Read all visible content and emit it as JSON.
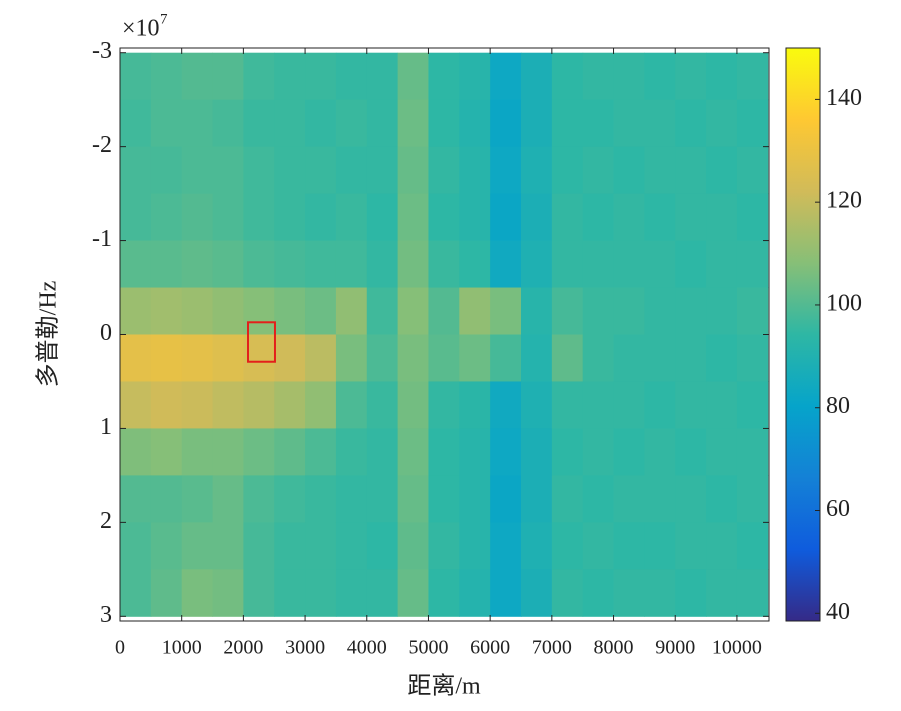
{
  "chart_data": {
    "type": "heatmap",
    "x_label": "距离/m",
    "y_label": "多普勒/Hz",
    "y_multiplier": {
      "base": "×10",
      "exponent": 7
    },
    "xlim": [
      0,
      10520
    ],
    "ylim": [
      -3.05,
      3.05
    ],
    "y_reversed": true,
    "xticks": [
      0,
      1000,
      2000,
      3000,
      4000,
      5000,
      6000,
      7000,
      8000,
      9000,
      10000
    ],
    "yticks": [
      -3,
      -2,
      -1,
      0,
      1,
      2,
      3
    ],
    "clim": [
      38.5,
      150
    ],
    "cticks": [
      40,
      60,
      80,
      100,
      120,
      140
    ],
    "colormap": [
      "#352a87",
      "#0f5cdd",
      "#1481d6",
      "#06a4ca",
      "#2eb7a4",
      "#87bf77",
      "#d1bb59",
      "#fec832",
      "#f9fb0e"
    ],
    "cell_width": 500,
    "cell_height": 0.5,
    "x": [
      250,
      750,
      1250,
      1750,
      2250,
      2750,
      3250,
      3750,
      4250,
      4750,
      5250,
      5750,
      6250,
      6750,
      7250,
      7750,
      8250,
      8750,
      9250,
      9750,
      10250
    ],
    "y": [
      -2.75,
      -2.25,
      -1.75,
      -1.25,
      -0.75,
      -0.25,
      0.25,
      0.75,
      1.25,
      1.75,
      2.25,
      2.75
    ],
    "z": [
      [
        98,
        99,
        100,
        100,
        97,
        96,
        96,
        95,
        95,
        103,
        94,
        92,
        83,
        88,
        94,
        95,
        95,
        94,
        95,
        94,
        95
      ],
      [
        97,
        99,
        99,
        98,
        96,
        96,
        95,
        96,
        95,
        104,
        94,
        91,
        82,
        88,
        94,
        94,
        95,
        95,
        94,
        95,
        94
      ],
      [
        98,
        98,
        99,
        99,
        97,
        96,
        96,
        95,
        95,
        103,
        95,
        92,
        83,
        89,
        94,
        95,
        94,
        95,
        95,
        94,
        95
      ],
      [
        98,
        99,
        100,
        99,
        97,
        96,
        95,
        96,
        94,
        104,
        94,
        92,
        82,
        88,
        95,
        94,
        95,
        94,
        95,
        95,
        94
      ],
      [
        101,
        101,
        102,
        101,
        99,
        98,
        97,
        97,
        95,
        105,
        96,
        94,
        84,
        89,
        95,
        95,
        95,
        95,
        94,
        95,
        95
      ],
      [
        112,
        113,
        112,
        110,
        108,
        106,
        104,
        110,
        97,
        108,
        100,
        110,
        106,
        92,
        98,
        96,
        96,
        95,
        95,
        95,
        96
      ],
      [
        128,
        129,
        128,
        126,
        124,
        122,
        118,
        106,
        99,
        106,
        101,
        104,
        98,
        91,
        102,
        96,
        95,
        95,
        95,
        94,
        95
      ],
      [
        120,
        122,
        121,
        119,
        117,
        114,
        110,
        99,
        96,
        105,
        95,
        93,
        84,
        89,
        95,
        95,
        95,
        94,
        95,
        95,
        94
      ],
      [
        107,
        108,
        106,
        106,
        104,
        102,
        99,
        96,
        95,
        104,
        94,
        92,
        83,
        88,
        94,
        95,
        94,
        95,
        94,
        95,
        95
      ],
      [
        100,
        100,
        101,
        103,
        99,
        97,
        96,
        95,
        95,
        103,
        94,
        92,
        82,
        88,
        95,
        94,
        95,
        95,
        95,
        94,
        95
      ],
      [
        99,
        101,
        103,
        103,
        98,
        96,
        96,
        95,
        94,
        102,
        95,
        92,
        83,
        89,
        94,
        95,
        94,
        94,
        95,
        95,
        94
      ],
      [
        99,
        102,
        106,
        105,
        98,
        96,
        96,
        95,
        95,
        103,
        94,
        91,
        83,
        88,
        95,
        94,
        95,
        95,
        94,
        95,
        95
      ]
    ],
    "annotation_box": {
      "x": [
        2075,
        2512
      ],
      "y": [
        -0.13,
        0.29
      ],
      "color": "#e3201b"
    }
  }
}
